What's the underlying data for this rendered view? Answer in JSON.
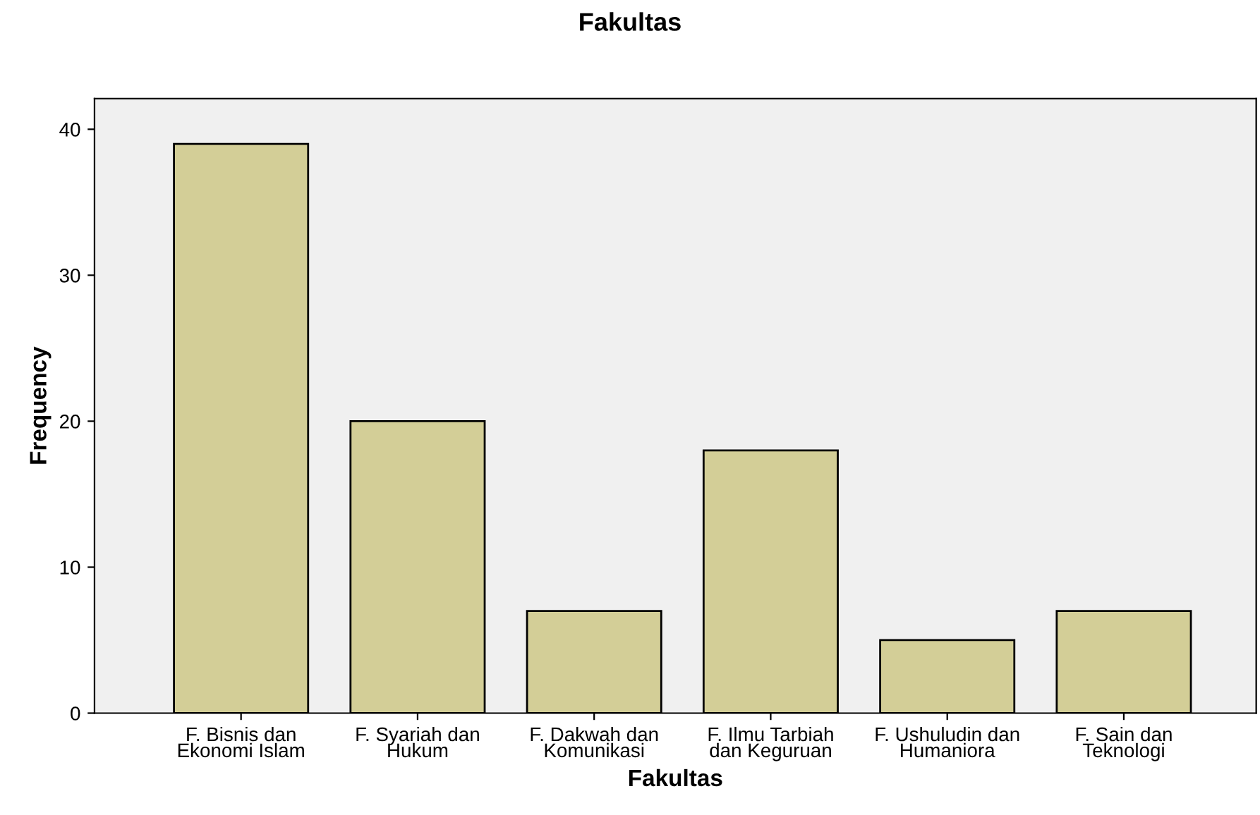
{
  "chart_data": {
    "type": "bar",
    "title": "Fakultas",
    "xlabel": "Fakultas",
    "ylabel": "Frequency",
    "categories": [
      "F. Bisnis dan\nEkonomi Islam",
      "F. Syariah dan\nHukum",
      "F. Dakwah dan\nKomunikasi",
      "F. Ilmu Tarbiah\ndan Keguruan",
      "F. Ushuludin dan\nHumaniora",
      "F. Sain dan\nTeknologi"
    ],
    "values": [
      39,
      20,
      7,
      18,
      5,
      7
    ],
    "color": "#d3ce97",
    "ylim": [
      0,
      42.1
    ],
    "yticks": [
      0,
      10,
      20,
      30,
      40
    ],
    "grid": false
  }
}
